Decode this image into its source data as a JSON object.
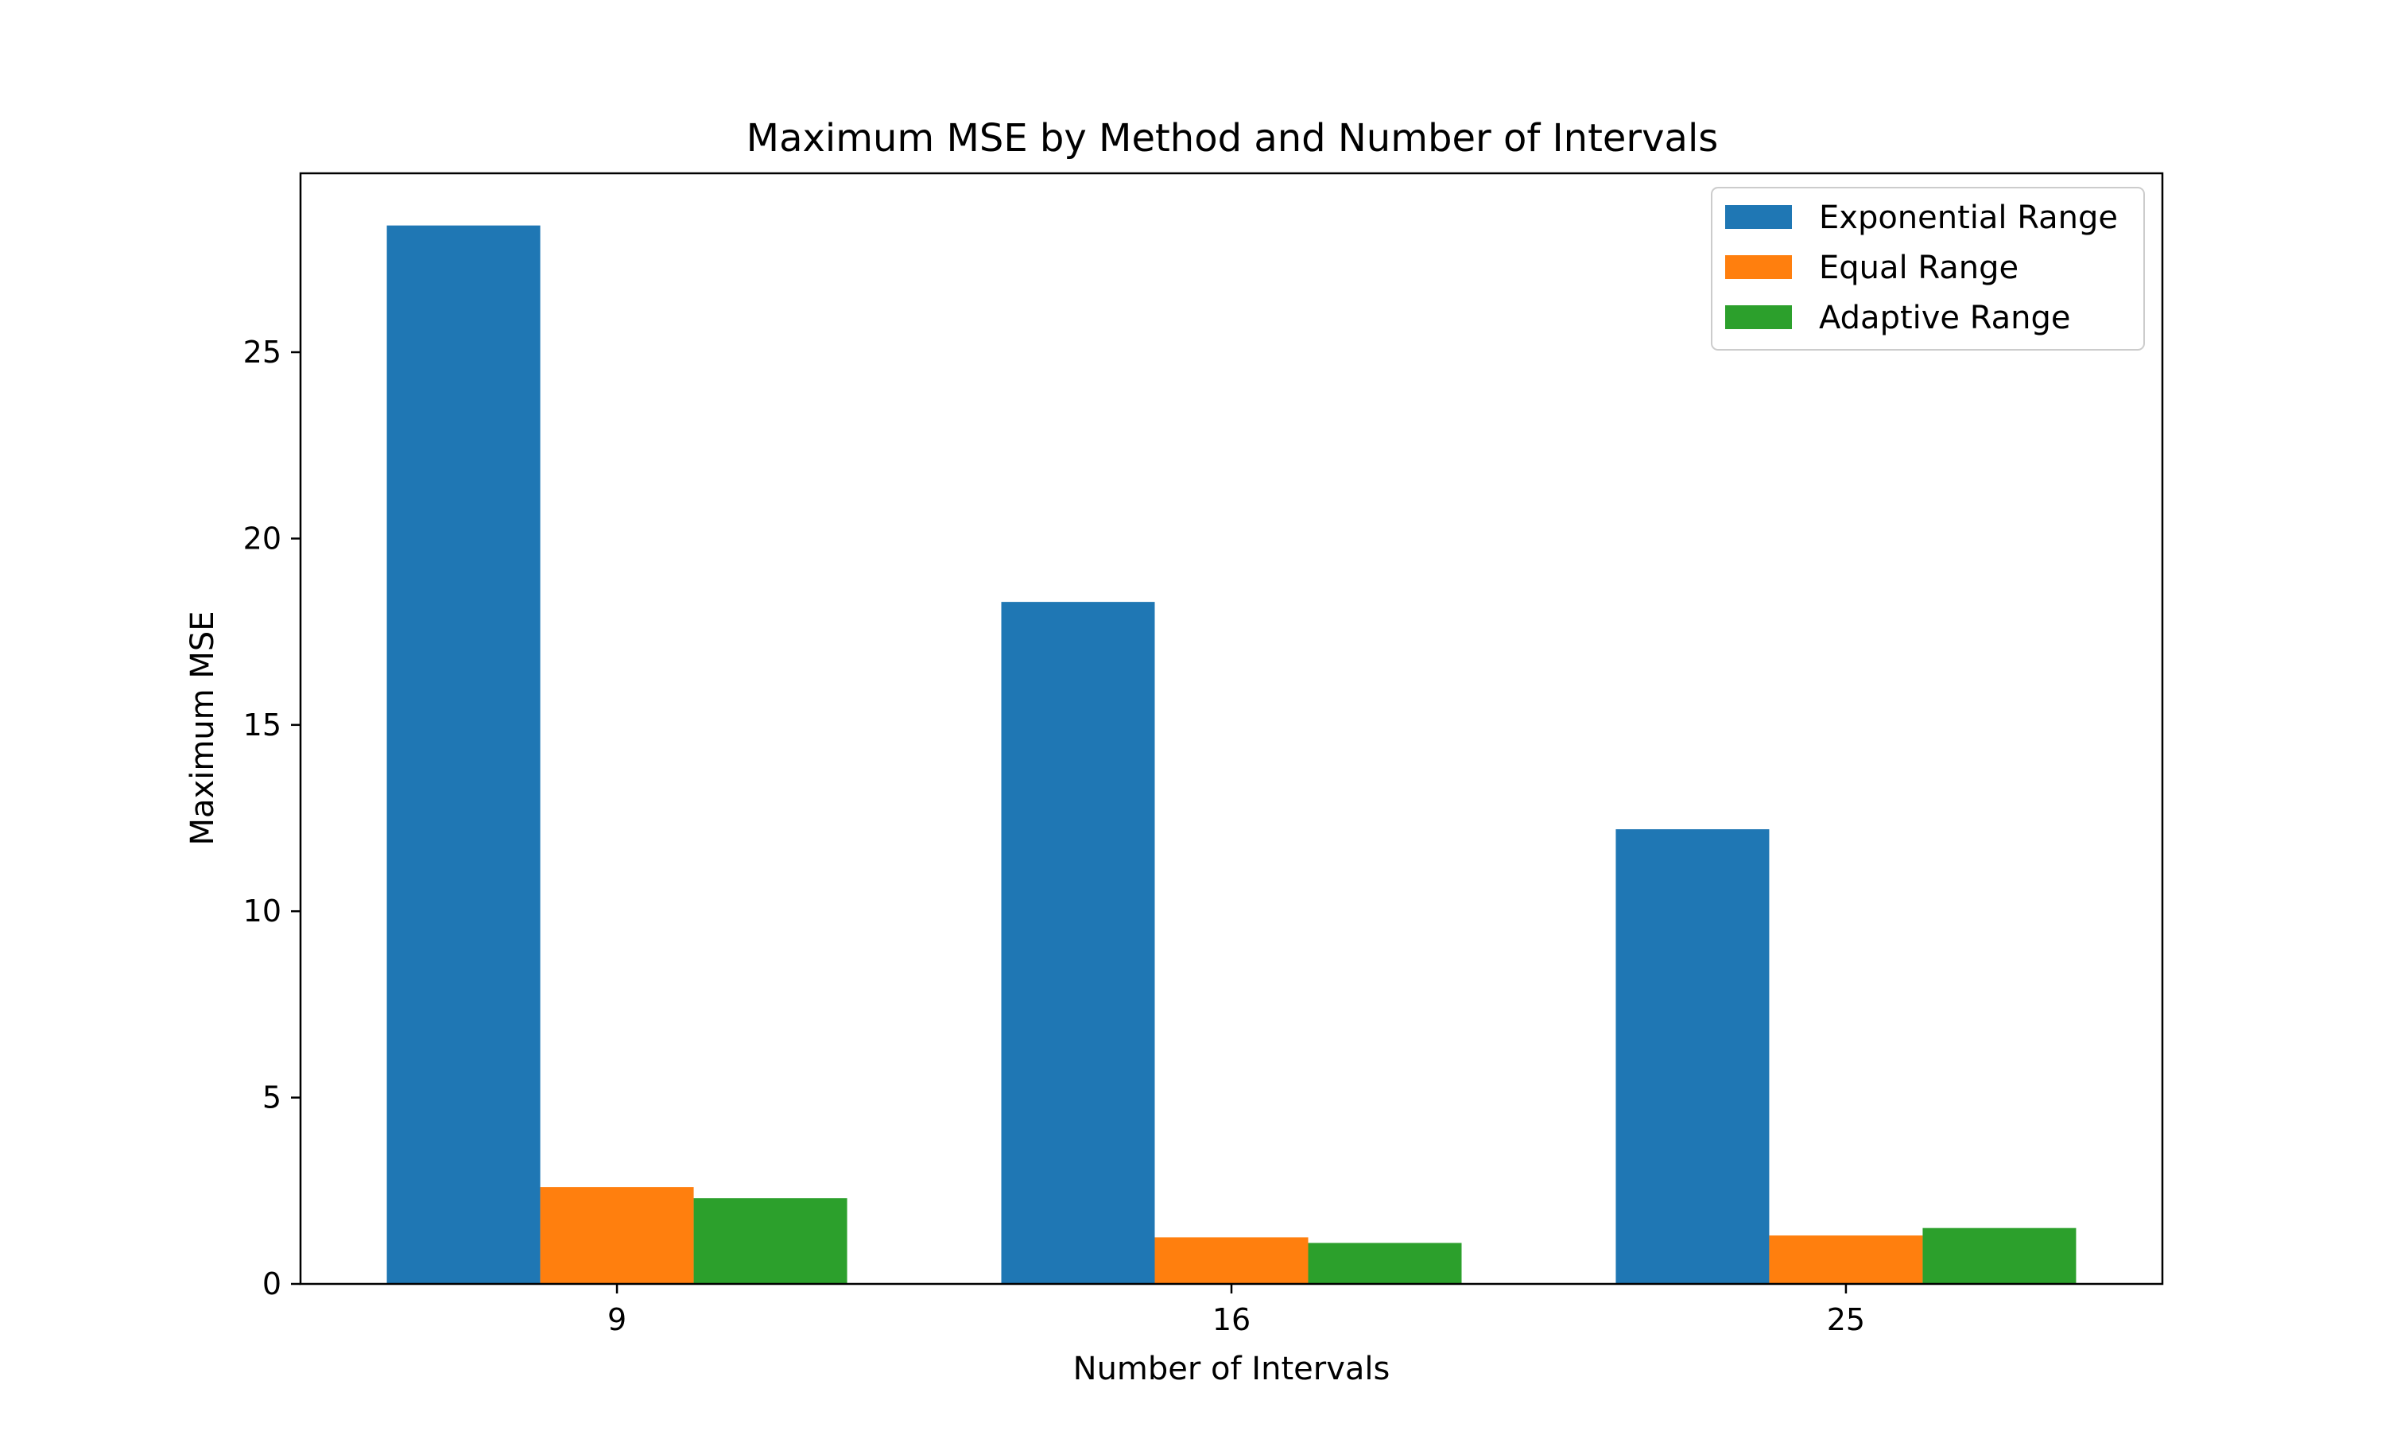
{
  "chart_data": {
    "type": "bar",
    "title": "Maximum MSE by Method and Number of Intervals",
    "xlabel": "Number of Intervals",
    "ylabel": "Maximum MSE",
    "categories": [
      "9",
      "16",
      "25"
    ],
    "series": [
      {
        "name": "Exponential Range",
        "color": "#1f77b4",
        "values": [
          28.4,
          18.3,
          12.2
        ]
      },
      {
        "name": "Equal Range",
        "color": "#ff7f0e",
        "values": [
          2.6,
          1.25,
          1.3
        ]
      },
      {
        "name": "Adaptive Range",
        "color": "#2ca02c",
        "values": [
          2.3,
          1.1,
          1.5
        ]
      }
    ],
    "ylim": [
      0,
      29.8
    ],
    "yticks": [
      0,
      5,
      10,
      15,
      20,
      25
    ],
    "grid": false,
    "legend_position": "top-right"
  }
}
